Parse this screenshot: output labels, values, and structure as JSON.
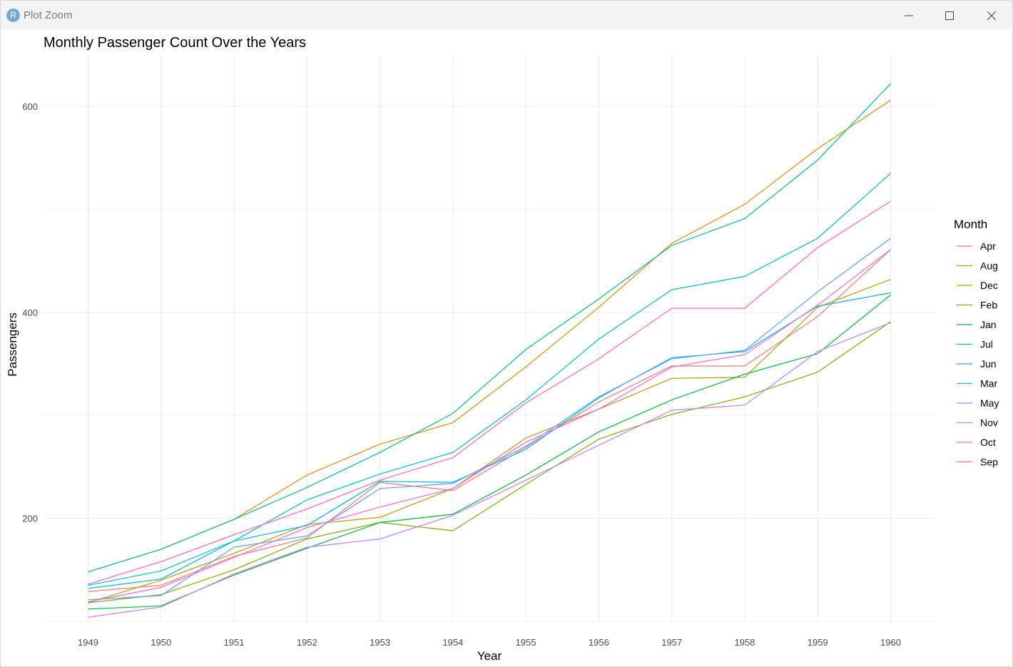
{
  "window": {
    "title": "Plot Zoom",
    "app_icon_label": "R",
    "controls": [
      "minimize-icon",
      "maximize-icon",
      "close-icon"
    ]
  },
  "colors": {
    "Apr": "#F8766D",
    "Aug": "#DE8C00",
    "Dec": "#B79F00",
    "Feb": "#7CAE00",
    "Jan": "#00BA38",
    "Jul": "#00C08B",
    "Jun": "#00BFC4",
    "Mar": "#00B4F0",
    "May": "#619CFF",
    "Nov": "#C77CFF",
    "Oct": "#F564E3",
    "Sep": "#FF64B0"
  },
  "chart_data": {
    "type": "line",
    "title": "Monthly Passenger Count Over the Years",
    "xlabel": "Year",
    "ylabel": "Passengers",
    "legend_title": "Month",
    "legend_position": "right",
    "grid": true,
    "x": [
      1949,
      1950,
      1951,
      1952,
      1953,
      1954,
      1955,
      1956,
      1957,
      1958,
      1959,
      1960
    ],
    "x_ticks": [
      "1949",
      "1950",
      "1951",
      "1952",
      "1953",
      "1954",
      "1955",
      "1956",
      "1957",
      "1958",
      "1959",
      "1960"
    ],
    "y_ticks": [
      "200",
      "400",
      "600"
    ],
    "ylim": [
      100,
      650
    ],
    "series": [
      {
        "name": "Apr",
        "values": [
          129,
          135,
          163,
          181,
          235,
          227,
          269,
          313,
          348,
          348,
          396,
          461
        ]
      },
      {
        "name": "Aug",
        "values": [
          148,
          170,
          199,
          242,
          272,
          293,
          347,
          405,
          467,
          505,
          559,
          606
        ]
      },
      {
        "name": "Dec",
        "values": [
          118,
          140,
          166,
          194,
          201,
          229,
          278,
          306,
          336,
          337,
          405,
          432
        ]
      },
      {
        "name": "Feb",
        "values": [
          118,
          126,
          150,
          180,
          196,
          188,
          233,
          277,
          301,
          318,
          342,
          391
        ]
      },
      {
        "name": "Jan",
        "values": [
          112,
          115,
          145,
          171,
          196,
          204,
          242,
          284,
          315,
          340,
          360,
          417
        ]
      },
      {
        "name": "Jul",
        "values": [
          148,
          170,
          199,
          230,
          264,
          302,
          364,
          413,
          465,
          491,
          548,
          622
        ]
      },
      {
        "name": "Jun",
        "values": [
          135,
          149,
          178,
          218,
          243,
          264,
          315,
          374,
          422,
          435,
          472,
          535
        ]
      },
      {
        "name": "Mar",
        "values": [
          132,
          141,
          178,
          193,
          236,
          235,
          267,
          317,
          356,
          362,
          406,
          419
        ]
      },
      {
        "name": "May",
        "values": [
          121,
          125,
          172,
          183,
          229,
          234,
          270,
          318,
          355,
          363,
          420,
          472
        ]
      },
      {
        "name": "Nov",
        "values": [
          104,
          114,
          146,
          172,
          180,
          203,
          237,
          271,
          305,
          310,
          362,
          390
        ]
      },
      {
        "name": "Oct",
        "values": [
          119,
          133,
          162,
          191,
          211,
          229,
          274,
          306,
          347,
          359,
          407,
          461
        ]
      },
      {
        "name": "Sep",
        "values": [
          136,
          158,
          184,
          209,
          237,
          259,
          312,
          355,
          404,
          404,
          463,
          508
        ]
      }
    ]
  }
}
